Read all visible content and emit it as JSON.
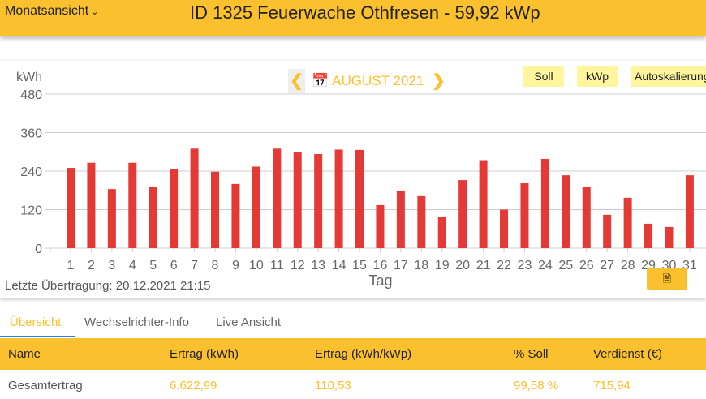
{
  "header": {
    "view_select": "Monatsansicht",
    "title": "ID 1325 Feuerwache Othfresen - 59,92 kWp"
  },
  "chart_toolbar": {
    "month": "AUGUST 2021",
    "buttons": [
      "Soll",
      "kWp",
      "Autoskalierung"
    ]
  },
  "colors": {
    "accent": "#fbc02d",
    "bar": "#e53935",
    "button_bg": "#fff59d",
    "tab_underline": "#1e88e5"
  },
  "chart_data": {
    "type": "bar",
    "ylabel": "kWh",
    "xlabel": "Tag",
    "ylim": [
      0,
      480
    ],
    "yticks": [
      "0",
      "120",
      "240",
      "360",
      "480"
    ],
    "grid": true,
    "categories": [
      "1",
      "2",
      "3",
      "4",
      "5",
      "6",
      "7",
      "8",
      "9",
      "10",
      "11",
      "12",
      "13",
      "14",
      "15",
      "16",
      "17",
      "18",
      "19",
      "20",
      "21",
      "22",
      "23",
      "24",
      "25",
      "26",
      "27",
      "28",
      "29",
      "30",
      "31"
    ],
    "values": [
      250,
      266,
      184,
      266,
      192,
      247,
      310,
      238,
      200,
      254,
      310,
      298,
      293,
      307,
      306,
      134,
      179,
      162,
      98,
      212,
      274,
      120,
      202,
      278,
      227,
      192,
      104,
      157,
      76,
      66,
      227
    ]
  },
  "status": {
    "last_transfer": "Letzte Übertragung: 20.12.2021 21:15"
  },
  "tabs": [
    "Übersicht",
    "Wechselrichter-Info",
    "Live Ansicht"
  ],
  "table": {
    "headers": [
      "Name",
      "Ertrag (kWh)",
      "Ertrag (kWh/kWp)",
      "% Soll",
      "Verdienst (€)"
    ],
    "rows": [
      [
        "Gesamtertrag",
        "6.622,99",
        "110,53",
        "99,58 %",
        "715,94"
      ]
    ]
  }
}
